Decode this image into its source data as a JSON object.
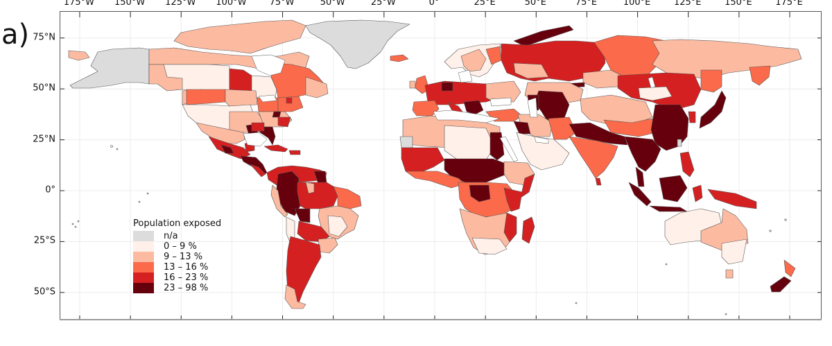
{
  "panel_label": "a)",
  "chart_data": {
    "type": "choropleth-map",
    "title": "",
    "projection": "equirectangular (lon/lat)",
    "x_axis": {
      "ticks": [
        "175°W",
        "150°W",
        "125°W",
        "100°W",
        "75°W",
        "50°W",
        "25°W",
        "0°",
        "25°E",
        "50°E",
        "75°E",
        "100°E",
        "125°E",
        "150°E",
        "175°E"
      ],
      "tick_values": [
        -175,
        -150,
        -125,
        -100,
        -75,
        -50,
        -25,
        0,
        25,
        50,
        75,
        100,
        125,
        150,
        175
      ],
      "position": "top"
    },
    "y_axis": {
      "ticks": [
        "75°N",
        "50°N",
        "25°N",
        "0°",
        "25°S",
        "50°S"
      ],
      "tick_values": [
        75,
        50,
        25,
        0,
        -25,
        -50
      ],
      "position": "left"
    },
    "grid": true,
    "legend": {
      "title": "Population exposed",
      "position": "lower-left",
      "classes": [
        {
          "label": "n/a",
          "color": "#dcdcdc"
        },
        {
          "label": "0 – 9 %",
          "color": "#fff0e9"
        },
        {
          "label": "9 – 13 %",
          "color": "#fcbba1"
        },
        {
          "label": "13 – 16 %",
          "color": "#fb6a4a"
        },
        {
          "label": "16 – 23 %",
          "color": "#d42020"
        },
        {
          "label": "23 – 98 %",
          "color": "#67000d"
        }
      ]
    },
    "regions_summary": [
      {
        "region": "Greenland",
        "class": "n/a"
      },
      {
        "region": "Alaska",
        "class": "n/a"
      },
      {
        "region": "Western Sahara",
        "class": "n/a"
      },
      {
        "region": "Northern Canada",
        "class": "9 – 13 %"
      },
      {
        "region": "Western/Central Canada",
        "class": "0 – 9 %"
      },
      {
        "region": "Manitoba",
        "class": "16 – 23 %"
      },
      {
        "region": "Quebec",
        "class": "13 – 16 %"
      },
      {
        "region": "Western USA",
        "class": "0 – 9 %"
      },
      {
        "region": "Southeast USA / Florida",
        "class": "23 – 98 %"
      },
      {
        "region": "Mexico / Central America",
        "class": "16 – 23 %"
      },
      {
        "region": "Amazon / Andes",
        "class": "23 – 98 %"
      },
      {
        "region": "Argentina",
        "class": "16 – 23 %"
      },
      {
        "region": "Eastern Brazil",
        "class": "9 – 13 %"
      },
      {
        "region": "Sahara",
        "class": "0 – 9 %"
      },
      {
        "region": "Central Africa / Sahel",
        "class": "23 – 98 %"
      },
      {
        "region": "Southern Africa",
        "class": "9 – 13 %"
      },
      {
        "region": "Arabian Peninsula",
        "class": "0 – 9 %"
      },
      {
        "region": "Western Europe",
        "class": "16 – 23 %"
      },
      {
        "region": "Western Russia",
        "class": "16 – 23 %"
      },
      {
        "region": "Central Siberia",
        "class": "13 – 16 %"
      },
      {
        "region": "Eastern Siberia",
        "class": "9 – 13 %"
      },
      {
        "region": "India",
        "class": "13 – 16 %"
      },
      {
        "region": "Indo-Gangetic Plain",
        "class": "23 – 98 %"
      },
      {
        "region": "Eastern China",
        "class": "23 – 98 %"
      },
      {
        "region": "Southeast Asia",
        "class": "23 – 98 %"
      },
      {
        "region": "Japan",
        "class": "23 – 98 %"
      },
      {
        "region": "Australia (west/south)",
        "class": "0 – 9 %"
      },
      {
        "region": "Australia (central/Queensland)",
        "class": "9 – 13 %"
      },
      {
        "region": "New Zealand",
        "class": "23 – 98 %"
      },
      {
        "region": "Madagascar",
        "class": "16 – 23 %"
      },
      {
        "region": "Papua New Guinea",
        "class": "16 – 23 %"
      }
    ]
  }
}
